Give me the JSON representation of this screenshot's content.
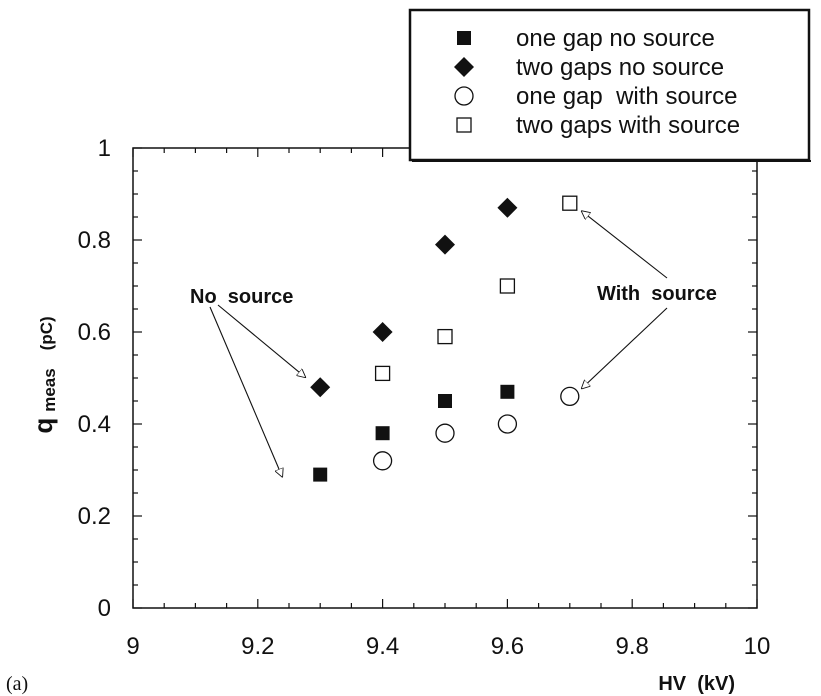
{
  "chart_data": {
    "type": "scatter",
    "panel_label": "(a)",
    "xlabel": "HV  (kV)",
    "ylabel_main": "q",
    "ylabel_sub": "meas",
    "ylabel_unit": "(pC)",
    "xlim": [
      9,
      10
    ],
    "ylim": [
      0,
      1
    ],
    "xticks": [
      9,
      9.2,
      9.4,
      9.6,
      9.8,
      10
    ],
    "xtick_labels": [
      "9",
      "9.2",
      "9.4",
      "9.6",
      "9.8",
      "10"
    ],
    "yticks": [
      0,
      0.2,
      0.4,
      0.6,
      0.8,
      1
    ],
    "ytick_labels": [
      "0",
      "0.2",
      "0.4",
      "0.6",
      "0.8",
      "1"
    ],
    "grid": false,
    "legend_position": "top-right",
    "series": [
      {
        "name": "one gap no source",
        "marker": "filled-square",
        "x": [
          9.3,
          9.4,
          9.5,
          9.6
        ],
        "y": [
          0.29,
          0.38,
          0.45,
          0.47
        ]
      },
      {
        "name": "two gaps no source",
        "marker": "filled-diamond",
        "x": [
          9.3,
          9.4,
          9.5,
          9.6
        ],
        "y": [
          0.48,
          0.6,
          0.79,
          0.87
        ]
      },
      {
        "name": "one gap  with source",
        "marker": "open-circle",
        "x": [
          9.4,
          9.5,
          9.6,
          9.7
        ],
        "y": [
          0.32,
          0.38,
          0.4,
          0.46
        ]
      },
      {
        "name": "two gaps with source",
        "marker": "open-square",
        "x": [
          9.4,
          9.5,
          9.6,
          9.7
        ],
        "y": [
          0.51,
          0.59,
          0.7,
          0.88
        ]
      }
    ],
    "annotations": [
      {
        "text": "No  source",
        "arrows_to": [
          [
            9.3,
            0.48
          ],
          [
            9.3,
            0.29
          ]
        ]
      },
      {
        "text": "With  source",
        "arrows_to": [
          [
            9.7,
            0.88
          ],
          [
            9.7,
            0.46
          ]
        ]
      }
    ]
  }
}
